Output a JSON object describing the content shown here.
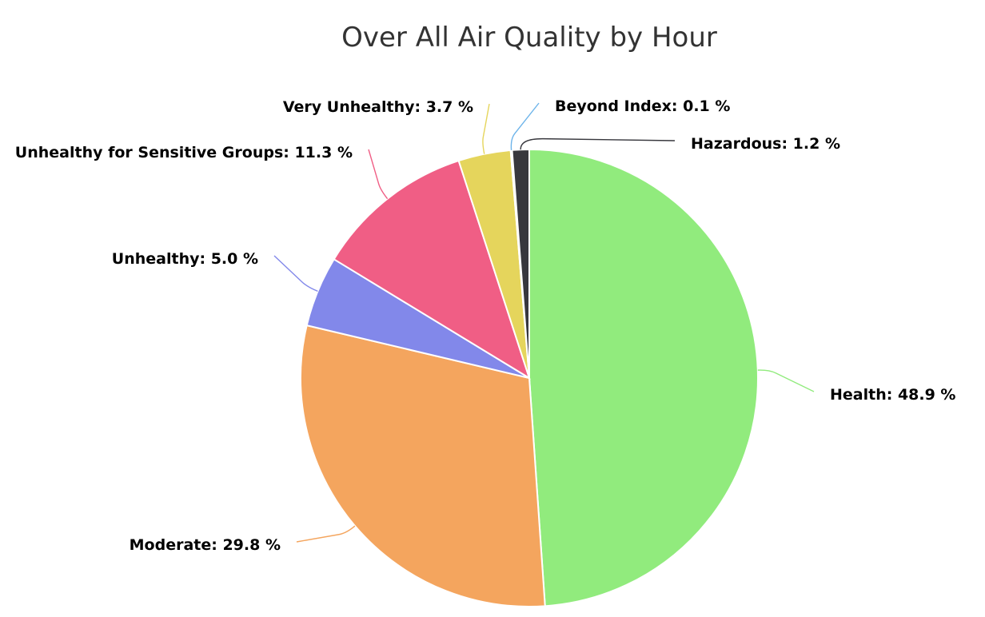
{
  "chart_data": {
    "type": "pie",
    "title": "Over All Air Quality by Hour",
    "unit": "%",
    "slices": [
      {
        "name": "Health",
        "value": 48.9,
        "color": "#91eb7d"
      },
      {
        "name": "Moderate",
        "value": 29.8,
        "color": "#f4a55e"
      },
      {
        "name": "Unhealthy",
        "value": 5.0,
        "color": "#8288ea"
      },
      {
        "name": "Unhealthy for Sensitive Groups",
        "value": 11.3,
        "color": "#f05e85"
      },
      {
        "name": "Very Unhealthy",
        "value": 3.7,
        "color": "#e5d55c"
      },
      {
        "name": "Beyond Index",
        "value": 0.1,
        "color": "#6db4ea"
      },
      {
        "name": "Hazardous",
        "value": 1.2,
        "color": "#37373d"
      }
    ],
    "labels": [
      "Health: 48.9 %",
      "Moderate: 29.8 %",
      "Unhealthy: 5.0 %",
      "Unhealthy for Sensitive Groups: 11.3 %",
      "Very Unhealthy: 3.7 %",
      "Beyond Index: 0.1 %",
      "Hazardous: 1.2 %"
    ]
  }
}
